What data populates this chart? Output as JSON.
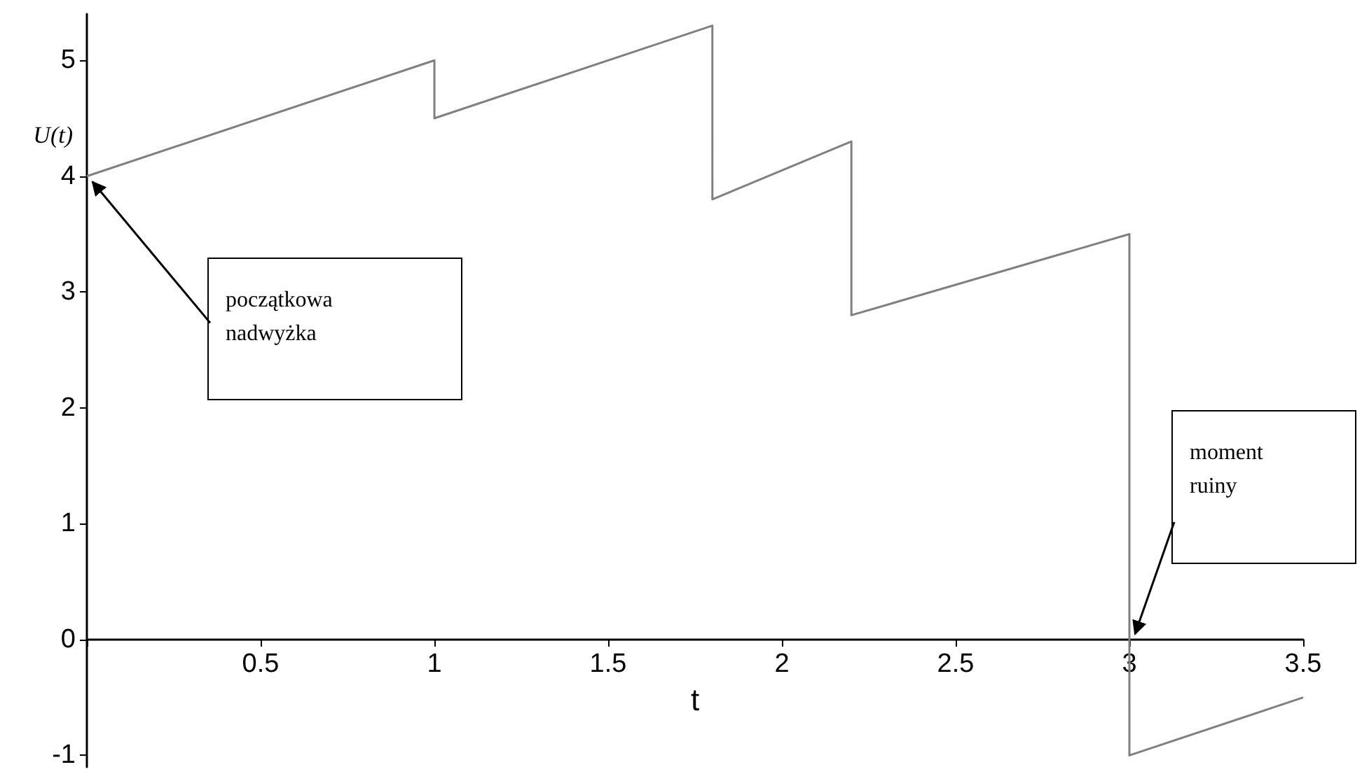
{
  "chart_data": {
    "type": "line",
    "xlabel": "t",
    "ylabel": "U(t)",
    "xlim": [
      0,
      3.5
    ],
    "ylim": [
      -1.1,
      5.4
    ],
    "xticks": [
      {
        "value": 0,
        "label": null
      },
      0.5,
      1,
      1.5,
      2,
      2.5,
      3,
      3.5
    ],
    "yticks": [
      -1,
      0,
      1,
      2,
      3,
      4,
      5
    ],
    "marker": "none",
    "line_style": "solid",
    "series": [
      {
        "color": "#808080",
        "x": [
          0,
          1,
          1,
          1.8,
          1.8,
          2.2,
          2.2,
          3,
          3,
          3.5
        ],
        "values": [
          4,
          5,
          4.5,
          5.3,
          3.8,
          4.3,
          2.8,
          3.5,
          -1,
          -0.5
        ]
      }
    ],
    "annotations": [
      {
        "text": "początkowa\nnadwyżka",
        "x": 0,
        "y": 4
      },
      {
        "text": "moment\nruiny",
        "x": 3,
        "y": 0
      }
    ]
  }
}
